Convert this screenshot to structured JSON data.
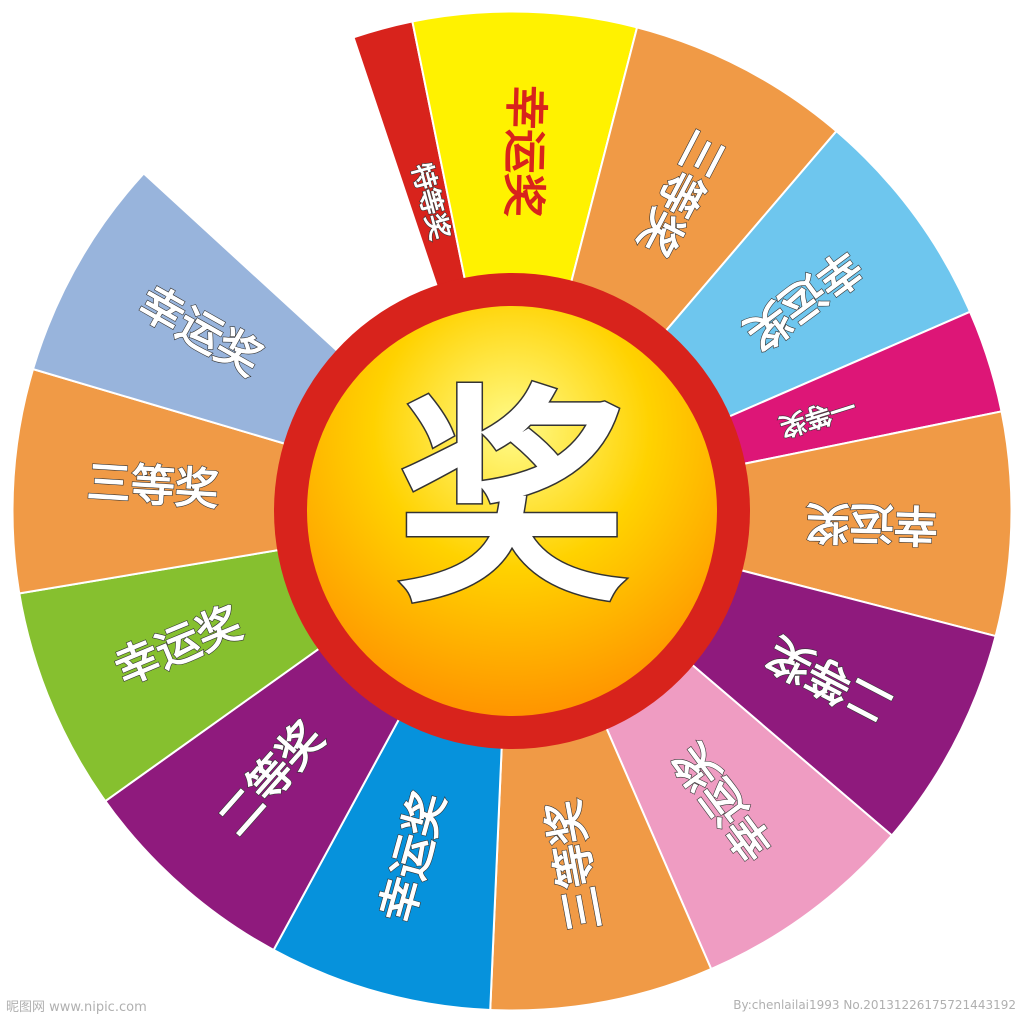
{
  "wheel": {
    "center_char": "奖",
    "ring_color": "#d8231c",
    "hub_gradient": [
      "#fffb8a",
      "#ffd200",
      "#ff8c00"
    ],
    "segments": [
      {
        "label": "特等奖",
        "color": "#d8231c",
        "text_color": "#ffffff",
        "small": true
      },
      {
        "label": "幸运奖",
        "color": "#fff200",
        "text_color": "#d8231c",
        "small": false
      },
      {
        "label": "三等奖",
        "color": "#f09a46",
        "text_color": "#ffffff",
        "small": false
      },
      {
        "label": "幸运奖",
        "color": "#6ec6ee",
        "text_color": "#ffffff",
        "small": false
      },
      {
        "label": "一等奖",
        "color": "#dd1677",
        "text_color": "#ffffff",
        "small": true
      },
      {
        "label": "幸运奖",
        "color": "#f09a46",
        "text_color": "#ffffff",
        "small": false
      },
      {
        "label": "二等奖",
        "color": "#8f1a7d",
        "text_color": "#ffffff",
        "small": false
      },
      {
        "label": "幸运奖",
        "color": "#ef9cc2",
        "text_color": "#ffffff",
        "small": false
      },
      {
        "label": "三等奖",
        "color": "#f09a46",
        "text_color": "#ffffff",
        "small": false
      },
      {
        "label": "幸运奖",
        "color": "#0692dc",
        "text_color": "#ffffff",
        "small": false
      },
      {
        "label": "二等奖",
        "color": "#8f1a7d",
        "text_color": "#ffffff",
        "small": false
      },
      {
        "label": "幸运奖",
        "color": "#86c02f",
        "text_color": "#ffffff",
        "small": false
      },
      {
        "label": "三等奖",
        "color": "#f09a46",
        "text_color": "#ffffff",
        "small": false
      },
      {
        "label": "幸运奖",
        "color": "#98b4dc",
        "text_color": "#ffffff",
        "small": false
      }
    ]
  },
  "watermarks": {
    "left": "昵图网 www.nipic.com",
    "right": "By:chenlailai1993 No.20131226175721443192"
  }
}
